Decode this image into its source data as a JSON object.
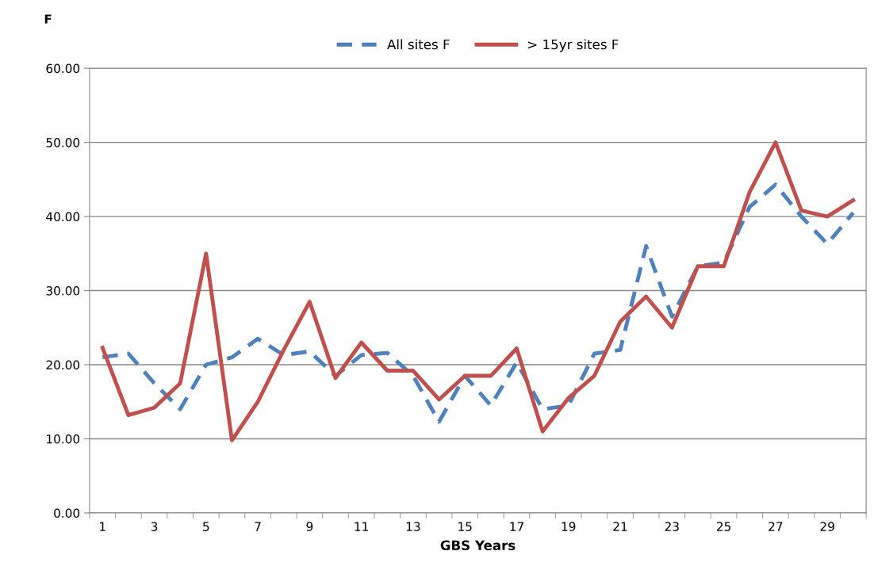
{
  "chart_data": {
    "type": "line",
    "ylabel": "F",
    "xlabel": "GBS Years",
    "categories": [
      "1",
      null,
      "3",
      null,
      "5",
      null,
      "7",
      null,
      "9",
      null,
      "11",
      null,
      "13",
      null,
      "15",
      null,
      "17",
      null,
      "19",
      null,
      "21",
      null,
      "23",
      null,
      "25",
      null,
      "27",
      null,
      "29",
      null
    ],
    "series": [
      {
        "name": "All sites F",
        "color": "#4f81bd",
        "line_style": "dashed",
        "values": [
          21.0,
          21.5,
          17.5,
          14.0,
          20.0,
          21.0,
          23.5,
          21.3,
          21.8,
          18.5,
          21.3,
          21.6,
          18.5,
          12.3,
          18.5,
          14.5,
          20.3,
          14.0,
          14.5,
          21.5,
          22.0,
          36.0,
          26.5,
          33.3,
          33.8,
          41.3,
          44.3,
          40.0,
          36.3,
          40.5
        ]
      },
      {
        "name": "> 15yr sites F",
        "color": "#c0504d",
        "line_style": "solid",
        "values": [
          22.3,
          13.2,
          14.2,
          17.5,
          35.0,
          9.8,
          15.0,
          22.0,
          28.5,
          18.2,
          23.0,
          19.2,
          19.2,
          15.3,
          18.5,
          18.5,
          22.2,
          11.0,
          15.5,
          18.5,
          25.8,
          29.2,
          25.0,
          33.3,
          33.3,
          43.3,
          50.0,
          40.8,
          40.0,
          42.2
        ]
      }
    ],
    "ylim": [
      0,
      60
    ],
    "yticks": [
      {
        "value": 0,
        "label": "0.00"
      },
      {
        "value": 10,
        "label": "10.00"
      },
      {
        "value": 20,
        "label": "20.00"
      },
      {
        "value": 30,
        "label": "30.00"
      },
      {
        "value": 40,
        "label": "40.00"
      },
      {
        "value": 50,
        "label": "50.00"
      },
      {
        "value": 60,
        "label": "60.00"
      }
    ],
    "grid": "y",
    "legend": "top",
    "marker": "none"
  }
}
